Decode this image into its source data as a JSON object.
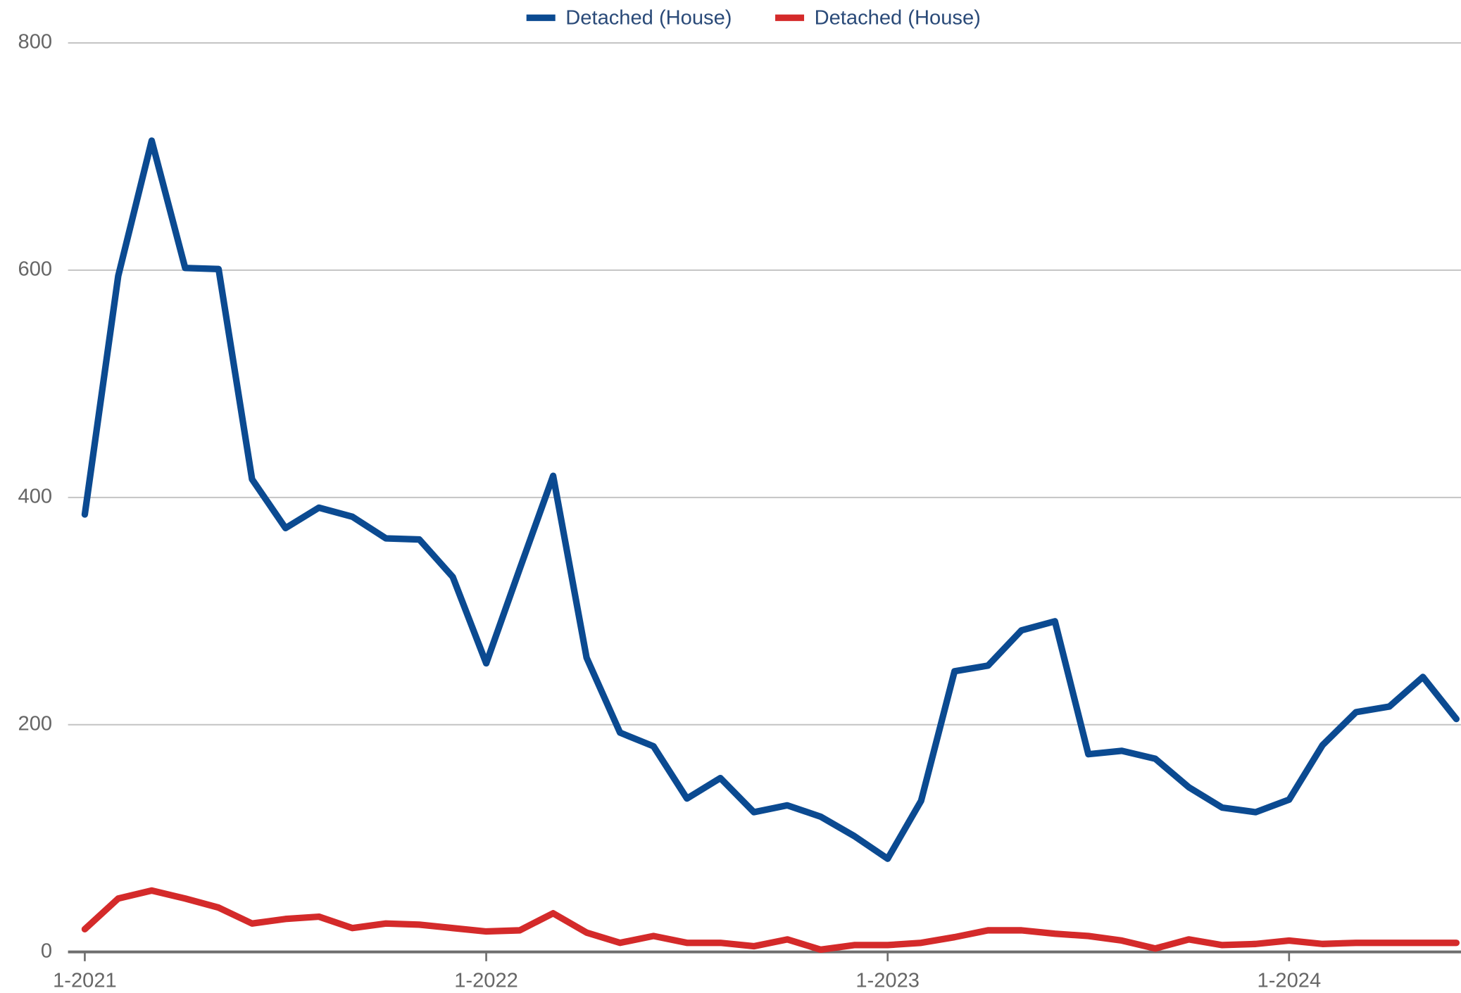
{
  "chart_data": {
    "type": "line",
    "categories": [
      "1-2021",
      null,
      null,
      null,
      null,
      null,
      null,
      null,
      null,
      null,
      null,
      null,
      "1-2022",
      null,
      null,
      null,
      null,
      null,
      null,
      null,
      null,
      null,
      null,
      null,
      "1-2023",
      null,
      null,
      null,
      null,
      null,
      null,
      null,
      null,
      null,
      null,
      null,
      "1-2024",
      null,
      null,
      null,
      null,
      null
    ],
    "series": [
      {
        "name": "Detached (House)",
        "color": "#0b4a91",
        "values": [
          385,
          595,
          714,
          602,
          601,
          416,
          373,
          391,
          383,
          364,
          363,
          330,
          254,
          337,
          419,
          259,
          193,
          181,
          135,
          153,
          123,
          129,
          119,
          102,
          82,
          133,
          247,
          252,
          283,
          291,
          174,
          177,
          170,
          145,
          127,
          123,
          134,
          182,
          211,
          216,
          242,
          205
        ]
      },
      {
        "name": "Detached (House)",
        "color": "#d42a2a",
        "values": [
          20,
          47,
          54,
          47,
          39,
          25,
          29,
          31,
          21,
          25,
          24,
          21,
          18,
          19,
          34,
          17,
          8,
          14,
          8,
          8,
          5,
          11,
          2,
          6,
          6,
          8,
          13,
          19,
          19,
          16,
          14,
          10,
          3,
          11,
          6,
          7,
          10,
          7,
          8,
          8,
          8,
          8
        ]
      }
    ],
    "ylim": [
      0,
      800
    ],
    "yticks": [
      0,
      200,
      400,
      600,
      800
    ],
    "grid": true,
    "legend": "top"
  }
}
